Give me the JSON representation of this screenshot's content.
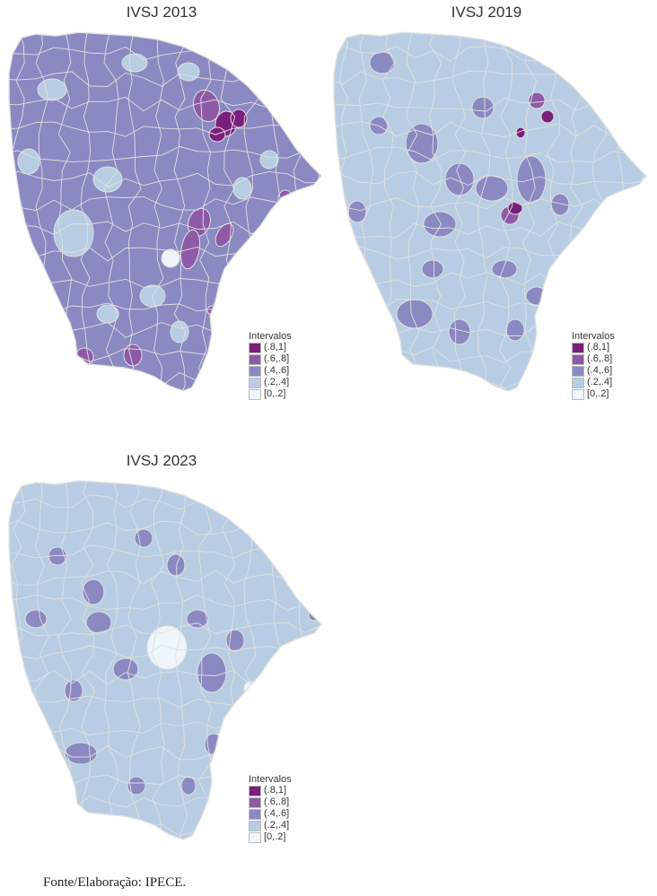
{
  "maps": [
    {
      "title": "IVSJ 2013",
      "dominant_class": 2
    },
    {
      "title": "IVSJ 2019",
      "dominant_class": 3
    },
    {
      "title": "IVSJ 2023",
      "dominant_class": 3
    }
  ],
  "legend": {
    "title": "Intervalos",
    "classes": [
      "(.8,1]",
      "(.6,.8]",
      "(.4,.6]",
      "(.2,.4]",
      "[0,.2]"
    ],
    "colors": [
      "#7a1f7c",
      "#8e5aa8",
      "#8b89c2",
      "#b8cde3",
      "#eef6fb"
    ]
  },
  "boundary_color": "#e0e0e0",
  "source": "Fonte/Elaboração: IPECE."
}
